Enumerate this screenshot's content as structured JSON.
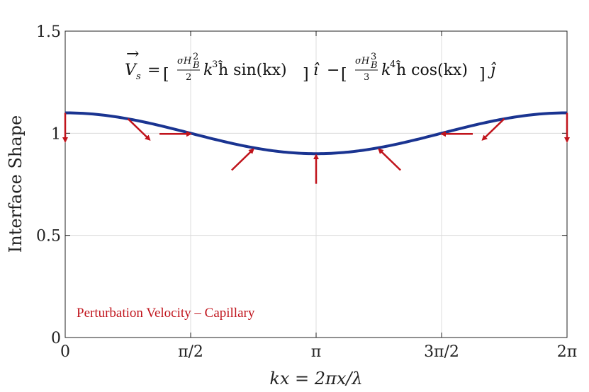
{
  "chart_data": {
    "type": "line",
    "title": "",
    "xlabel": "kx = 2πx/λ",
    "ylabel": "Interface Shape",
    "xlim": [
      0,
      6.283185307
    ],
    "ylim": [
      0,
      1.5
    ],
    "grid": true,
    "x_ticks": [
      {
        "value": 0,
        "label": "0"
      },
      {
        "value": 1.570796327,
        "label": "π/2"
      },
      {
        "value": 3.141592654,
        "label": "π"
      },
      {
        "value": 4.71238898,
        "label": "3π/2"
      },
      {
        "value": 6.283185307,
        "label": "2π"
      }
    ],
    "y_ticks": [
      {
        "value": 0,
        "label": "0"
      },
      {
        "value": 0.5,
        "label": "0.5"
      },
      {
        "value": 1,
        "label": "1"
      },
      {
        "value": 1.5,
        "label": "1.5"
      }
    ],
    "series": [
      {
        "name": "Interface",
        "color": "#1a3491",
        "function": "1 + 0.1*cos(kx)",
        "mean": 1.0,
        "amplitude": 0.1
      }
    ],
    "vectors": {
      "color": "#c0141c",
      "items": [
        {
          "x": 0.0,
          "y": 1.1,
          "vx": 0.0,
          "vy": -0.45
        },
        {
          "x": 0.785,
          "y": 1.071,
          "vx": 0.34,
          "vy": -0.33
        },
        {
          "x": 1.571,
          "y": 1.0,
          "vx": 0.48,
          "vy": 0.0
        },
        {
          "x": 2.356,
          "y": 0.929,
          "vx": 0.34,
          "vy": 0.33
        },
        {
          "x": 3.142,
          "y": 0.9,
          "vx": 0.0,
          "vy": 0.45
        },
        {
          "x": 3.927,
          "y": 0.929,
          "vx": -0.34,
          "vy": 0.33
        },
        {
          "x": 4.712,
          "y": 1.0,
          "vx": -0.48,
          "vy": 0.0
        },
        {
          "x": 5.498,
          "y": 1.071,
          "vx": -0.34,
          "vy": -0.33
        },
        {
          "x": 6.283,
          "y": 1.1,
          "vx": 0.0,
          "vy": -0.45
        }
      ]
    },
    "annotation": "Perturbation Velocity – Capillary",
    "equation": {
      "lhs": "V",
      "lhs_sub": "s",
      "term1_num_a": "σH",
      "term1_num_sub": "B",
      "term1_num_sup": "2",
      "term1_den": "2",
      "term1_k": "k",
      "term1_k_sup": "3",
      "term1_rest": "ĥ sin(kx)",
      "term1_unit": "î",
      "minus": "−",
      "term2_num_a": "σH",
      "term2_num_sub": "B",
      "term2_num_sup": "3",
      "term2_den": "3",
      "term2_k": "k",
      "term2_k_sup": "4",
      "term2_rest": "ĥ cos(kx)",
      "term2_unit": "ĵ"
    }
  }
}
